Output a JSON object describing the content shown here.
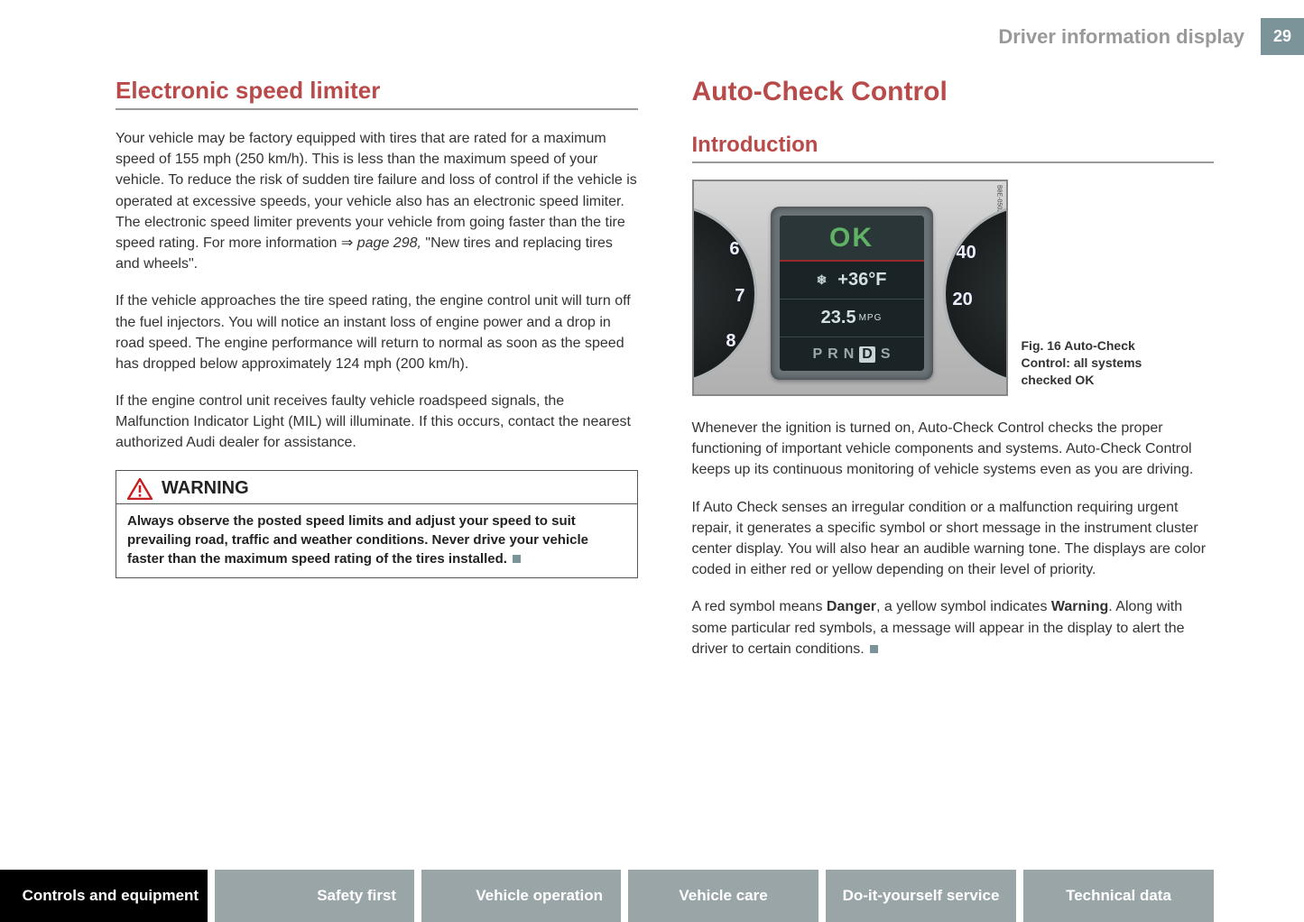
{
  "header": {
    "title": "Driver information display",
    "page_number": "29"
  },
  "left": {
    "heading": "Electronic speed limiter",
    "para1a": "Your vehicle may be factory equipped with tires that are rated for a maximum speed of 155 mph (250 km/h). This is less than the maximum speed of your vehicle. To reduce the risk of sudden tire failure and loss of control if the vehicle is operated at excessive speeds, your vehicle also has an electronic speed limiter. The electronic speed limiter prevents your vehicle from going faster than the tire speed rating. For more information ⇒ ",
    "para1ref": "page 298,",
    "para1b": " \"New tires and replacing tires and wheels\".",
    "para2": "If the vehicle approaches the tire speed rating, the engine control unit will turn off the fuel injectors. You will notice an instant loss of engine power and a drop in road speed. The engine performance will return to normal as soon as the speed has dropped below approximately 124 mph (200 km/h).",
    "para3": "If the engine control unit receives faulty vehicle roadspeed signals, the Malfunction Indicator Light (MIL) will illuminate. If this occurs, contact the nearest authorized Audi dealer for assistance.",
    "warning": {
      "title": "WARNING",
      "body": "Always observe the posted speed limits and adjust your speed to suit prevailing road, traffic and weather conditions. Never drive your vehicle faster than the maximum speed rating of the tires installed."
    }
  },
  "right": {
    "main_heading": "Auto-Check Control",
    "sub_heading": "Introduction",
    "figure": {
      "code": "B8E-0502",
      "ok": "OK",
      "temp": "+36°F",
      "mpg_value": "23.5",
      "mpg_unit": "MPG",
      "gears": [
        "P",
        "R",
        "N",
        "D",
        "S"
      ],
      "gear_active_index": 3,
      "left_nums": [
        "6",
        "7",
        "8"
      ],
      "right_nums": [
        "40",
        "20"
      ],
      "caption": "Fig. 16   Auto-Check Control: all systems checked OK"
    },
    "para1": "Whenever the ignition is turned on, Auto-Check Control checks the proper functioning of important vehicle components and systems. Auto-Check Control keeps up its continuous monitoring of vehicle systems even as you are driving.",
    "para2": "If Auto Check senses an irregular condition or a malfunction requiring urgent repair, it generates a specific symbol or short message in the instrument cluster center display. You will also hear an audible warning tone. The displays are color coded in either red or yellow depending on their level of priority.",
    "para3a": "A red symbol means ",
    "para3b": "Danger",
    "para3c": ", a yellow symbol indicates ",
    "para3d": "Warning",
    "para3e": ". Along with some particular red symbols, a message will appear in the display to alert the driver to certain conditions."
  },
  "tabs": [
    {
      "label": "Controls and equipment",
      "active": true
    },
    {
      "label": "Safety first",
      "active": false
    },
    {
      "label": "Vehicle operation",
      "active": false
    },
    {
      "label": "Vehicle care",
      "active": false
    },
    {
      "label": "Do-it-yourself service",
      "active": false
    },
    {
      "label": "Technical data",
      "active": false
    }
  ]
}
